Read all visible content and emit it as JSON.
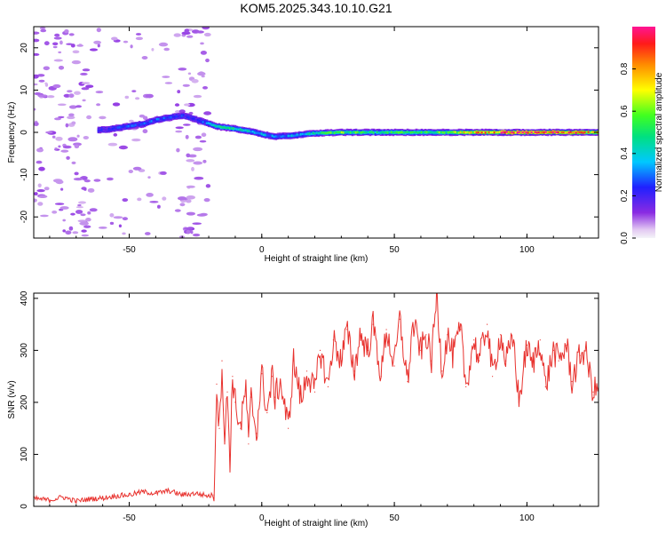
{
  "title": "KOM5.2025.343.10.10.G21",
  "chart_data": [
    {
      "type": "heatmap",
      "name": "spectrogram",
      "xlabel": "Height of straight line (km)",
      "ylabel": "Frequency (Hz)",
      "xlim": [
        -86,
        127
      ],
      "ylim": [
        -25,
        25
      ],
      "xticks": [
        -50,
        0,
        50,
        100
      ],
      "yticks": [
        -20,
        -10,
        0,
        10,
        20
      ],
      "ridge": {
        "x": [
          -62,
          -55,
          -50,
          -45,
          -40,
          -35,
          -30,
          -25,
          -20,
          -18,
          -15,
          -10,
          -5,
          0,
          5,
          10,
          15,
          20,
          30,
          40,
          50,
          60,
          70,
          80,
          90,
          100,
          110,
          120,
          127
        ],
        "y": [
          0.5,
          1.0,
          1.5,
          2.0,
          3.0,
          3.5,
          4.0,
          3.0,
          2.0,
          1.5,
          1.2,
          0.8,
          0.3,
          -0.5,
          -1.0,
          -0.8,
          -0.5,
          -0.2,
          0.0,
          0.0,
          0.0,
          0.0,
          0.0,
          0.0,
          0.0,
          0.0,
          0.0,
          0.0,
          0.0
        ],
        "amplitude": [
          0.22,
          0.25,
          0.28,
          0.27,
          0.3,
          0.28,
          0.25,
          0.22,
          0.35,
          0.45,
          0.5,
          0.45,
          0.42,
          0.38,
          0.32,
          0.35,
          0.4,
          0.45,
          0.62,
          0.48,
          0.52,
          0.55,
          0.6,
          0.78,
          0.9,
          0.95,
          0.97,
          0.85,
          0.7
        ]
      },
      "colorbar": {
        "label": "Normalized spectral amplitude",
        "range": [
          0,
          1
        ],
        "ticks": [
          "0.0",
          "0.2",
          "0.4",
          "0.6",
          "0.8"
        ]
      }
    },
    {
      "type": "line",
      "name": "snr",
      "xlabel": "Height of straight line (km)",
      "ylabel": "SNR (v/v)",
      "xlim": [
        -86,
        127
      ],
      "ylim": [
        0,
        410
      ],
      "xticks": [
        -50,
        0,
        50,
        100
      ],
      "yticks": [
        0,
        100,
        200,
        300,
        400
      ],
      "color": "#e8322e",
      "series": [
        {
          "name": "SNR",
          "x": [
            -86,
            -80,
            -75,
            -70,
            -65,
            -60,
            -55,
            -50,
            -45,
            -40,
            -35,
            -30,
            -25,
            -20,
            -18,
            -17,
            -16,
            -15,
            -14,
            -13,
            -12,
            -11,
            -10,
            -8,
            -6,
            -5,
            -4,
            -2,
            0,
            2,
            4,
            5,
            7,
            10,
            12,
            15,
            17,
            20,
            22,
            25,
            27,
            30,
            32,
            35,
            37,
            40,
            42,
            45,
            47,
            50,
            52,
            55,
            57,
            60,
            62,
            64,
            66,
            68,
            70,
            72,
            75,
            77,
            80,
            82,
            85,
            87,
            90,
            92,
            95,
            97,
            100,
            102,
            105,
            107,
            110,
            112,
            115,
            117,
            120,
            122,
            125,
            127
          ],
          "y": [
            15,
            12,
            18,
            10,
            14,
            16,
            20,
            22,
            28,
            25,
            30,
            22,
            25,
            20,
            22,
            235,
            150,
            280,
            120,
            220,
            90,
            250,
            200,
            150,
            230,
            120,
            210,
            140,
            255,
            180,
            250,
            210,
            240,
            150,
            280,
            200,
            260,
            220,
            300,
            230,
            320,
            280,
            340,
            260,
            330,
            300,
            350,
            250,
            340,
            270,
            360,
            240,
            350,
            300,
            330,
            280,
            410,
            260,
            330,
            290,
            340,
            230,
            320,
            280,
            350,
            250,
            330,
            280,
            320,
            200,
            310,
            270,
            320,
            230,
            300,
            280,
            310,
            240,
            290,
            300,
            220,
            230
          ]
        }
      ]
    }
  ]
}
